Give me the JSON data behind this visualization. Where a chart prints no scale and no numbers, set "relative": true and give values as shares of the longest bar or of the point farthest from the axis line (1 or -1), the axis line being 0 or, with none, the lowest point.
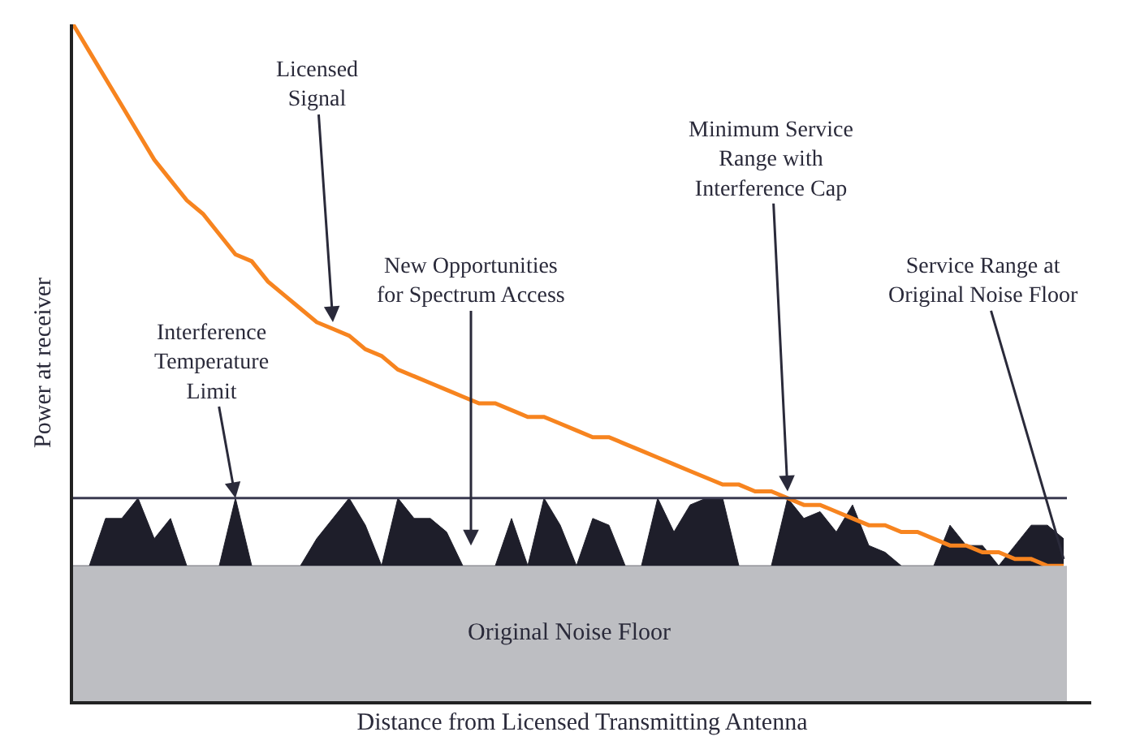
{
  "chart_data": {
    "type": "line",
    "relative": true,
    "xlabel": "Distance from Licensed Transmitting Antenna",
    "ylabel": "Power at receiver",
    "categories": [
      null,
      null,
      null,
      null,
      null,
      null,
      null,
      null,
      null,
      null,
      null,
      null,
      null,
      null,
      null,
      null,
      null,
      null,
      null,
      null,
      null,
      null,
      null,
      null,
      null,
      null,
      null,
      null,
      null,
      null,
      null,
      null,
      null,
      null,
      null,
      null,
      null,
      null,
      null,
      null,
      null,
      null,
      null,
      null,
      null,
      null,
      null,
      null,
      null,
      null,
      null,
      null,
      null,
      null,
      null,
      null,
      null,
      null,
      null,
      null,
      null,
      null
    ],
    "series": [
      {
        "type": "area",
        "color": "#1e1e2a",
        "values": [
          0.2,
          0.2,
          0.27,
          0.27,
          0.3,
          0.24,
          0.27,
          0.2,
          0.2,
          0.2,
          0.3,
          0.2,
          0.2,
          0.2,
          0.2,
          0.24,
          0.27,
          0.3,
          0.26,
          0.2,
          0.3,
          0.27,
          0.27,
          0.25,
          0.2,
          0.2,
          0.2,
          0.27,
          0.2,
          0.3,
          0.26,
          0.2,
          0.27,
          0.26,
          0.2,
          0.2,
          0.3,
          0.25,
          0.29,
          0.3,
          0.3,
          0.2,
          0.2,
          0.2,
          0.3,
          0.27,
          0.28,
          0.25,
          0.29,
          0.23,
          0.22,
          0.2,
          0.2,
          0.2,
          0.26,
          0.23,
          0.23,
          0.2,
          0.23,
          0.26,
          0.26,
          0.24
        ]
      },
      {
        "color": "#f7841f",
        "values": [
          1.0,
          0.96,
          0.92,
          0.88,
          0.84,
          0.8,
          0.77,
          0.74,
          0.72,
          0.69,
          0.66,
          0.65,
          0.62,
          0.6,
          0.58,
          0.56,
          0.55,
          0.54,
          0.52,
          0.51,
          0.49,
          0.48,
          0.47,
          0.46,
          0.45,
          0.44,
          0.44,
          0.43,
          0.42,
          0.42,
          0.41,
          0.4,
          0.39,
          0.39,
          0.38,
          0.37,
          0.36,
          0.35,
          0.34,
          0.33,
          0.32,
          0.32,
          0.31,
          0.31,
          0.3,
          0.29,
          0.29,
          0.28,
          0.27,
          0.26,
          0.26,
          0.25,
          0.25,
          0.24,
          0.23,
          0.23,
          0.22,
          0.22,
          0.21,
          0.21,
          0.2,
          0.2
        ]
      }
    ],
    "ref_lines": [
      {
        "axis": "y",
        "value": 0.3,
        "label": "Interference\nTemperature\nLimit",
        "color": "#3a3a50"
      }
    ],
    "bands": [
      {
        "axis": "y",
        "from": 0,
        "to": 0.2,
        "label": "Original Noise Floor",
        "color": "#bdbec2"
      }
    ],
    "annotations": [
      "Licensed\nSignal",
      "New Opportunities\nfor Spectrum Access",
      "Minimum Service\nRange with\nInterference Cap",
      "Service Range at\nOriginal Noise Floor"
    ],
    "grid": false
  }
}
